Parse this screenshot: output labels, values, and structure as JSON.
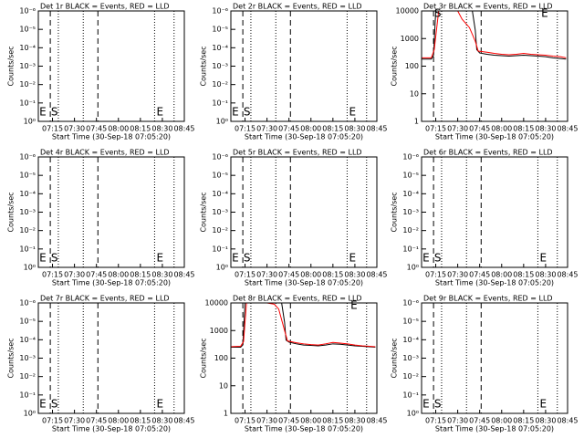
{
  "chart_data": [
    {
      "type": "empty",
      "title": "Det 1r BLACK = Events, RED = LLD",
      "ylabel": "Counts/sec",
      "xlabel": "Start Time (30-Sep-18 07:05:20)",
      "xlim": [
        5.33,
        105
      ],
      "xticks": [
        {
          "value": 15,
          "label": "07:15"
        },
        {
          "value": 30,
          "label": "07:30"
        },
        {
          "value": 45,
          "label": "07:45"
        },
        {
          "value": 60,
          "label": "08:00"
        },
        {
          "value": 75,
          "label": "08:15"
        },
        {
          "value": 90,
          "label": "08:30"
        },
        {
          "value": 105,
          "label": "08:45"
        }
      ],
      "ylim": [
        0,
        6
      ],
      "yticks": [
        {
          "value": 0,
          "label": "10⁰"
        },
        {
          "value": 1,
          "label": "10⁻¹"
        },
        {
          "value": 2,
          "label": "10⁻²"
        },
        {
          "value": 3,
          "label": "10⁻³"
        },
        {
          "value": 4,
          "label": "10⁻⁴"
        },
        {
          "value": 5,
          "label": "10⁻⁵"
        },
        {
          "value": 6,
          "label": "10⁻⁶"
        }
      ],
      "dashed": [
        13.5,
        46
      ],
      "dotted": [
        19,
        36,
        84.7,
        98
      ],
      "annotations": [
        {
          "text": "E",
          "x": 6
        },
        {
          "text": "S",
          "x": 14
        },
        {
          "text": "E",
          "x": 86
        }
      ]
    },
    {
      "type": "empty",
      "title": "Det 2r BLACK = Events, RED = LLD",
      "ylabel": "Counts/sec",
      "xlabel": "Start Time (30-Sep-18 07:05:20)",
      "xlim": [
        5.33,
        105
      ],
      "xticks": [
        {
          "value": 15,
          "label": "07:15"
        },
        {
          "value": 30,
          "label": "07:30"
        },
        {
          "value": 45,
          "label": "07:45"
        },
        {
          "value": 60,
          "label": "08:00"
        },
        {
          "value": 75,
          "label": "08:15"
        },
        {
          "value": 90,
          "label": "08:30"
        },
        {
          "value": 105,
          "label": "08:45"
        }
      ],
      "ylim": [
        0,
        6
      ],
      "yticks": [
        {
          "value": 0,
          "label": "10⁰"
        },
        {
          "value": 1,
          "label": "10⁻¹"
        },
        {
          "value": 2,
          "label": "10⁻²"
        },
        {
          "value": 3,
          "label": "10⁻³"
        },
        {
          "value": 4,
          "label": "10⁻⁴"
        },
        {
          "value": 5,
          "label": "10⁻⁵"
        },
        {
          "value": 6,
          "label": "10⁻⁶"
        }
      ],
      "dashed": [
        13.5,
        46
      ],
      "dotted": [
        19,
        36,
        84.7,
        98
      ],
      "annotations": [
        {
          "text": "E",
          "x": 6
        },
        {
          "text": "S",
          "x": 14
        },
        {
          "text": "E",
          "x": 86
        }
      ]
    },
    {
      "type": "line",
      "log": true,
      "title": "Det 3r BLACK = Events, RED = LLD",
      "ylabel": "Counts/sec",
      "xlabel": "Start Time (30-Sep-18 07:05:20)",
      "xlim": [
        5.33,
        105
      ],
      "xticks": [
        {
          "value": 15,
          "label": "07:15"
        },
        {
          "value": 30,
          "label": "07:30"
        },
        {
          "value": 45,
          "label": "07:45"
        },
        {
          "value": 60,
          "label": "08:00"
        },
        {
          "value": 75,
          "label": "08:15"
        },
        {
          "value": 90,
          "label": "08:30"
        },
        {
          "value": 105,
          "label": "08:45"
        }
      ],
      "ylim": [
        1,
        10000
      ],
      "yticks": [
        1,
        10,
        100,
        1000,
        10000
      ],
      "dashed": [
        13.5,
        46
      ],
      "dotted": [
        19,
        36,
        84.7,
        98
      ],
      "annotations": [
        {
          "text": "S",
          "x": 14
        },
        {
          "text": "E",
          "x": 87
        }
      ],
      "series": [
        {
          "color": "#000000",
          "x": [
            5.5,
            12,
            13.5,
            15,
            40,
            42,
            43,
            45,
            50,
            55,
            60,
            65,
            70,
            75,
            80,
            85,
            90,
            95,
            100,
            104
          ],
          "values": [
            180,
            180,
            250,
            10000,
            10000,
            2000,
            400,
            300,
            270,
            250,
            240,
            230,
            240,
            250,
            240,
            230,
            220,
            200,
            190,
            180
          ]
        },
        {
          "color": "#ff0000",
          "x": [
            5.5,
            12,
            14,
            17,
            30,
            33,
            38,
            42,
            44,
            50,
            55,
            60,
            65,
            70,
            75,
            80,
            85,
            90,
            95,
            100,
            104
          ],
          "values": [
            200,
            200,
            400,
            10000,
            10000,
            5000,
            2500,
            800,
            350,
            320,
            290,
            270,
            260,
            270,
            290,
            270,
            260,
            250,
            230,
            220,
            200
          ]
        }
      ]
    },
    {
      "type": "empty",
      "title": "Det 4r BLACK = Events, RED = LLD",
      "ylabel": "Counts/sec",
      "xlabel": "Start Time (30-Sep-18 07:05:20)",
      "xlim": [
        5.33,
        105
      ],
      "xticks": [
        {
          "value": 15,
          "label": "07:15"
        },
        {
          "value": 30,
          "label": "07:30"
        },
        {
          "value": 45,
          "label": "07:45"
        },
        {
          "value": 60,
          "label": "08:00"
        },
        {
          "value": 75,
          "label": "08:15"
        },
        {
          "value": 90,
          "label": "08:30"
        },
        {
          "value": 105,
          "label": "08:45"
        }
      ],
      "ylim": [
        0,
        6
      ],
      "yticks": [
        {
          "value": 0,
          "label": "10⁰"
        },
        {
          "value": 1,
          "label": "10⁻¹"
        },
        {
          "value": 2,
          "label": "10⁻²"
        },
        {
          "value": 3,
          "label": "10⁻³"
        },
        {
          "value": 4,
          "label": "10⁻⁴"
        },
        {
          "value": 5,
          "label": "10⁻⁵"
        },
        {
          "value": 6,
          "label": "10⁻⁶"
        }
      ],
      "dashed": [
        13.5,
        46
      ],
      "dotted": [
        19,
        36,
        84.7,
        98
      ],
      "annotations": [
        {
          "text": "E",
          "x": 6
        },
        {
          "text": "S",
          "x": 14
        },
        {
          "text": "E",
          "x": 86
        }
      ]
    },
    {
      "type": "empty",
      "title": "Det 5r BLACK = Events, RED = LLD",
      "ylabel": "Counts/sec",
      "xlabel": "Start Time (30-Sep-18 07:05:20)",
      "xlim": [
        5.33,
        105
      ],
      "xticks": [
        {
          "value": 15,
          "label": "07:15"
        },
        {
          "value": 30,
          "label": "07:30"
        },
        {
          "value": 45,
          "label": "07:45"
        },
        {
          "value": 60,
          "label": "08:00"
        },
        {
          "value": 75,
          "label": "08:15"
        },
        {
          "value": 90,
          "label": "08:30"
        },
        {
          "value": 105,
          "label": "08:45"
        }
      ],
      "ylim": [
        0,
        6
      ],
      "yticks": [
        {
          "value": 0,
          "label": "10⁰"
        },
        {
          "value": 1,
          "label": "10⁻¹"
        },
        {
          "value": 2,
          "label": "10⁻²"
        },
        {
          "value": 3,
          "label": "10⁻³"
        },
        {
          "value": 4,
          "label": "10⁻⁴"
        },
        {
          "value": 5,
          "label": "10⁻⁵"
        },
        {
          "value": 6,
          "label": "10⁻⁶"
        }
      ],
      "dashed": [
        13.5,
        46
      ],
      "dotted": [
        19,
        36,
        84.7,
        98
      ],
      "annotations": [
        {
          "text": "E",
          "x": 6
        },
        {
          "text": "S",
          "x": 14
        },
        {
          "text": "E",
          "x": 86
        }
      ]
    },
    {
      "type": "empty",
      "title": "Det 6r BLACK = Events, RED = LLD",
      "ylabel": "Counts/sec",
      "xlabel": "Start Time (30-Sep-18 07:05:20)",
      "xlim": [
        5.33,
        105
      ],
      "xticks": [
        {
          "value": 15,
          "label": "07:15"
        },
        {
          "value": 30,
          "label": "07:30"
        },
        {
          "value": 45,
          "label": "07:45"
        },
        {
          "value": 60,
          "label": "08:00"
        },
        {
          "value": 75,
          "label": "08:15"
        },
        {
          "value": 90,
          "label": "08:30"
        },
        {
          "value": 105,
          "label": "08:45"
        }
      ],
      "ylim": [
        0,
        6
      ],
      "yticks": [
        {
          "value": 0,
          "label": "10⁰"
        },
        {
          "value": 1,
          "label": "10⁻¹"
        },
        {
          "value": 2,
          "label": "10⁻²"
        },
        {
          "value": 3,
          "label": "10⁻³"
        },
        {
          "value": 4,
          "label": "10⁻⁴"
        },
        {
          "value": 5,
          "label": "10⁻⁵"
        },
        {
          "value": 6,
          "label": "10⁻⁶"
        }
      ],
      "dashed": [
        13.5,
        46
      ],
      "dotted": [
        19,
        36,
        84.7,
        98
      ],
      "annotations": [
        {
          "text": "E",
          "x": 6
        },
        {
          "text": "S",
          "x": 14
        },
        {
          "text": "E",
          "x": 86
        }
      ]
    },
    {
      "type": "empty",
      "title": "Det 7r BLACK = Events, RED = LLD",
      "ylabel": "Counts/sec",
      "xlabel": "Start Time (30-Sep-18 07:05:20)",
      "xlim": [
        5.33,
        105
      ],
      "xticks": [
        {
          "value": 15,
          "label": "07:15"
        },
        {
          "value": 30,
          "label": "07:30"
        },
        {
          "value": 45,
          "label": "07:45"
        },
        {
          "value": 60,
          "label": "08:00"
        },
        {
          "value": 75,
          "label": "08:15"
        },
        {
          "value": 90,
          "label": "08:30"
        },
        {
          "value": 105,
          "label": "08:45"
        }
      ],
      "ylim": [
        0,
        6
      ],
      "yticks": [
        {
          "value": 0,
          "label": "10⁰"
        },
        {
          "value": 1,
          "label": "10⁻¹"
        },
        {
          "value": 2,
          "label": "10⁻²"
        },
        {
          "value": 3,
          "label": "10⁻³"
        },
        {
          "value": 4,
          "label": "10⁻⁴"
        },
        {
          "value": 5,
          "label": "10⁻⁵"
        },
        {
          "value": 6,
          "label": "10⁻⁶"
        }
      ],
      "dashed": [
        13.5,
        46
      ],
      "dotted": [
        19,
        36,
        84.7,
        98
      ],
      "annotations": [
        {
          "text": "E",
          "x": 6
        },
        {
          "text": "S",
          "x": 14
        },
        {
          "text": "E",
          "x": 86
        }
      ]
    },
    {
      "type": "line",
      "log": true,
      "title": "Det 8r BLACK = Events, RED = LLD",
      "ylabel": "Counts/sec",
      "xlabel": "Start Time (30-Sep-18 07:05:20)",
      "xlim": [
        5.33,
        105
      ],
      "xticks": [
        {
          "value": 15,
          "label": "07:15"
        },
        {
          "value": 30,
          "label": "07:30"
        },
        {
          "value": 45,
          "label": "07:45"
        },
        {
          "value": 60,
          "label": "08:00"
        },
        {
          "value": 75,
          "label": "08:15"
        },
        {
          "value": 90,
          "label": "08:30"
        },
        {
          "value": 105,
          "label": "08:45"
        }
      ],
      "ylim": [
        1,
        10000
      ],
      "yticks": [
        1,
        10,
        100,
        1000,
        10000
      ],
      "dashed": [
        13.5,
        46
      ],
      "dotted": [
        19,
        36,
        84.7,
        98
      ],
      "annotations": [
        {
          "text": "E",
          "x": 87
        }
      ],
      "series": [
        {
          "color": "#000000",
          "x": [
            5.5,
            12,
            13.5,
            15,
            40,
            42,
            43,
            45,
            50,
            55,
            60,
            65,
            70,
            75,
            80,
            85,
            90,
            95,
            100,
            104
          ],
          "values": [
            250,
            250,
            300,
            10000,
            10000,
            2000,
            450,
            380,
            330,
            300,
            290,
            280,
            300,
            330,
            320,
            300,
            280,
            270,
            260,
            250
          ]
        },
        {
          "color": "#ff0000",
          "x": [
            5.5,
            12,
            14,
            16,
            30,
            35,
            38,
            42,
            44,
            50,
            55,
            60,
            65,
            70,
            75,
            80,
            85,
            90,
            95,
            100,
            104
          ],
          "values": [
            260,
            270,
            400,
            10000,
            10000,
            9000,
            6000,
            1000,
            420,
            360,
            330,
            310,
            300,
            330,
            370,
            350,
            330,
            300,
            280,
            270,
            260
          ]
        }
      ]
    },
    {
      "type": "empty",
      "title": "Det 9r BLACK = Events, RED = LLD",
      "ylabel": "Counts/sec",
      "xlabel": "Start Time (30-Sep-18 07:05:20)",
      "xlim": [
        5.33,
        105
      ],
      "xticks": [
        {
          "value": 15,
          "label": "07:15"
        },
        {
          "value": 30,
          "label": "07:30"
        },
        {
          "value": 45,
          "label": "07:45"
        },
        {
          "value": 60,
          "label": "08:00"
        },
        {
          "value": 75,
          "label": "08:15"
        },
        {
          "value": 90,
          "label": "08:30"
        },
        {
          "value": 105,
          "label": "08:45"
        }
      ],
      "ylim": [
        0,
        6
      ],
      "yticks": [
        {
          "value": 0,
          "label": "10⁰"
        },
        {
          "value": 1,
          "label": "10⁻¹"
        },
        {
          "value": 2,
          "label": "10⁻²"
        },
        {
          "value": 3,
          "label": "10⁻³"
        },
        {
          "value": 4,
          "label": "10⁻⁴"
        },
        {
          "value": 5,
          "label": "10⁻⁵"
        },
        {
          "value": 6,
          "label": "10⁻⁶"
        }
      ],
      "dashed": [
        13.5,
        46
      ],
      "dotted": [
        19,
        36,
        84.7,
        98
      ],
      "annotations": [
        {
          "text": "E",
          "x": 6
        },
        {
          "text": "S",
          "x": 14
        },
        {
          "text": "E",
          "x": 86
        }
      ]
    }
  ]
}
